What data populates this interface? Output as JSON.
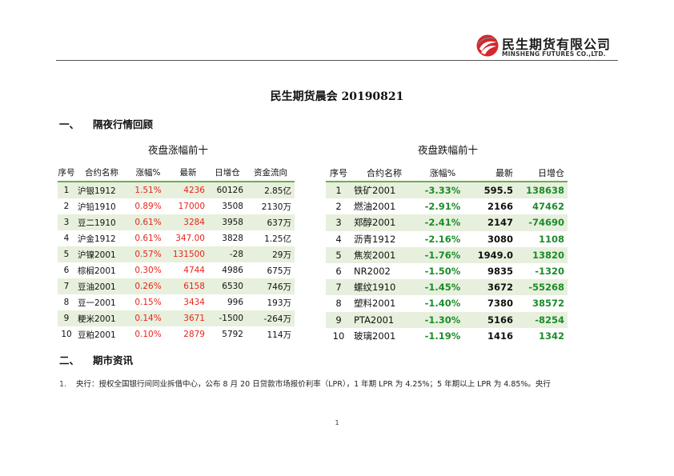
{
  "brand": {
    "name_cn": "民生期货有限公司",
    "name_en": "MINSHENG FUTURES CO.,LTD.",
    "colors": {
      "logo_red": "#d8262a",
      "logo_gray": "#7a7a7a"
    }
  },
  "title": "民生期货晨会 20190821",
  "section1": {
    "num": "一、",
    "title": "隔夜行情回顾"
  },
  "section2": {
    "num": "二、",
    "title": "期市资讯"
  },
  "gainers": {
    "title": "夜盘涨幅前十",
    "headers": [
      "序号",
      "合约名称",
      "涨幅%",
      "最新",
      "日增仓",
      "资金流向"
    ],
    "rows": [
      {
        "no": "1",
        "name": "沪银1912",
        "chg": "1.51%",
        "last": "4236",
        "oi": "60126",
        "flow": "2.85亿"
      },
      {
        "no": "2",
        "name": "沪铅1910",
        "chg": "0.89%",
        "last": "17000",
        "oi": "3508",
        "flow": "2130万"
      },
      {
        "no": "3",
        "name": "豆二1910",
        "chg": "0.61%",
        "last": "3284",
        "oi": "3958",
        "flow": "637万"
      },
      {
        "no": "4",
        "name": "沪金1912",
        "chg": "0.61%",
        "last": "347.00",
        "oi": "3828",
        "flow": "1.25亿"
      },
      {
        "no": "5",
        "name": "沪镍2001",
        "chg": "0.57%",
        "last": "131500",
        "oi": "-28",
        "flow": "29万"
      },
      {
        "no": "6",
        "name": "棕榈2001",
        "chg": "0.30%",
        "last": "4744",
        "oi": "4986",
        "flow": "675万"
      },
      {
        "no": "7",
        "name": "豆油2001",
        "chg": "0.26%",
        "last": "6158",
        "oi": "6530",
        "flow": "746万"
      },
      {
        "no": "8",
        "name": "豆一2001",
        "chg": "0.15%",
        "last": "3434",
        "oi": "996",
        "flow": "193万"
      },
      {
        "no": "9",
        "name": "粳米2001",
        "chg": "0.14%",
        "last": "3671",
        "oi": "-1500",
        "flow": "-264万"
      },
      {
        "no": "10",
        "name": "豆粕2001",
        "chg": "0.10%",
        "last": "2879",
        "oi": "5792",
        "flow": "114万"
      }
    ]
  },
  "losers": {
    "title": "夜盘跌幅前十",
    "headers": [
      "序号",
      "合约名称",
      "涨幅%",
      "最新",
      "日增仓"
    ],
    "rows": [
      {
        "no": "1",
        "name": "铁矿2001",
        "chg": "-3.33%",
        "last": "595.5",
        "oi": "138638"
      },
      {
        "no": "2",
        "name": "燃油2001",
        "chg": "-2.91%",
        "last": "2166",
        "oi": "47462"
      },
      {
        "no": "3",
        "name": "郑醇2001",
        "chg": "-2.41%",
        "last": "2147",
        "oi": "-74690"
      },
      {
        "no": "4",
        "name": "沥青1912",
        "chg": "-2.16%",
        "last": "3080",
        "oi": "1108"
      },
      {
        "no": "5",
        "name": "焦炭2001",
        "chg": "-1.76%",
        "last": "1949.0",
        "oi": "13820"
      },
      {
        "no": "6",
        "name": "NR2002",
        "chg": "-1.50%",
        "last": "9835",
        "oi": "-1320"
      },
      {
        "no": "7",
        "name": "螺纹1910",
        "chg": "-1.45%",
        "last": "3672",
        "oi": "-55268"
      },
      {
        "no": "8",
        "name": "塑料2001",
        "chg": "-1.40%",
        "last": "7380",
        "oi": "38572"
      },
      {
        "no": "9",
        "name": "PTA2001",
        "chg": "-1.30%",
        "last": "5166",
        "oi": "-8254"
      },
      {
        "no": "10",
        "name": "玻璃2001",
        "chg": "-1.19%",
        "last": "1416",
        "oi": "1342"
      }
    ]
  },
  "news": [
    {
      "idx": "1.",
      "text": "央行：授权全国银行间同业拆借中心，公布 8 月 20 日贷款市场报价利率（LPR），1 年期 LPR 为 4.25%；5 年期以上 LPR 为 4.85%。央行"
    }
  ],
  "page_number": "1"
}
